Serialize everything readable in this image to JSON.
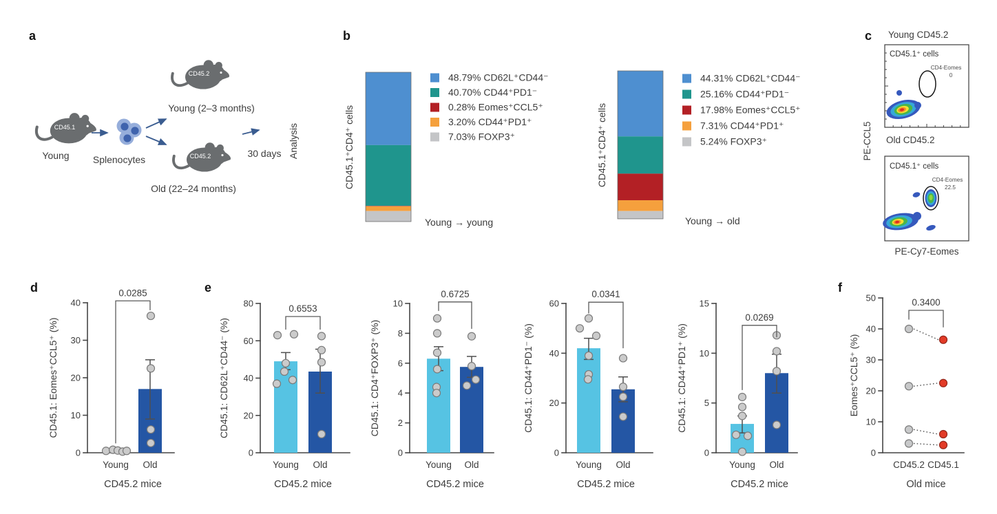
{
  "labels": {
    "a": "a",
    "b": "b",
    "c": "c",
    "d": "d",
    "e": "e",
    "f": "f"
  },
  "panel_a": {
    "donor_strain": "CD45.1",
    "donor_age": "Young",
    "cells": "Splenocytes",
    "recipient_strain": "CD45.2",
    "recipient_young": "Young (2–3 months)",
    "recipient_old": "Old (22–24 months)",
    "duration": "30 days",
    "endpoint": "Analysis"
  },
  "panel_c": {
    "title_top": "Young CD45.2",
    "title_bottom": "Old CD45.2",
    "subset_label": "CD45.1⁺ cells",
    "gate_name": "CD4-Eomes",
    "gate_value_young": "0",
    "gate_value_old": "22.5",
    "xlabel": "PE-Cy7-Eomes",
    "ylabel": "PE-CCL5"
  },
  "chart_data": [
    {
      "id": "b_young_young",
      "type": "stacked-bar",
      "axis_label": "CD45.1⁺CD4⁺ cells",
      "caption": "Young → young",
      "segments": [
        {
          "label": "48.79% CD62L⁺CD44⁻",
          "value": 48.79,
          "color": "#4e8fd0"
        },
        {
          "label": "40.70% CD44⁺PD1⁻",
          "value": 40.7,
          "color": "#1f958d"
        },
        {
          "label": "0.28% Eomes⁺CCL5⁺",
          "value": 0.28,
          "color": "#b32025"
        },
        {
          "label": "3.20% CD44⁺PD1⁺",
          "value": 3.2,
          "color": "#f5a03d"
        },
        {
          "label": "7.03% FOXP3⁺",
          "value": 7.03,
          "color": "#c4c5c7"
        }
      ]
    },
    {
      "id": "b_young_old",
      "type": "stacked-bar",
      "axis_label": "CD45.1⁺CD4⁺ cells",
      "caption": "Young → old",
      "segments": [
        {
          "label": "44.31% CD62L⁺CD44⁻",
          "value": 44.31,
          "color": "#4e8fd0"
        },
        {
          "label": "25.16% CD44⁺PD1⁻",
          "value": 25.16,
          "color": "#1f958d"
        },
        {
          "label": "17.98% Eomes⁺CCL5⁺",
          "value": 17.98,
          "color": "#b32025"
        },
        {
          "label": "7.31% CD44⁺PD1⁺",
          "value": 7.31,
          "color": "#f5a03d"
        },
        {
          "label": "5.24% FOXP3⁺",
          "value": 5.24,
          "color": "#c4c5c7"
        }
      ]
    },
    {
      "id": "d",
      "type": "bar",
      "ylabel": "CD45.1: Eomes⁺CCL5⁺ (%)",
      "xlabel": "CD45.2 mice",
      "ylim": [
        0,
        40
      ],
      "yticks": [
        0,
        10,
        20,
        30,
        40
      ],
      "p_value": "0.0285",
      "bracket": {
        "top": 40.5,
        "left_down_to": 2.5,
        "right_down_to": 38
      },
      "groups": [
        {
          "label": "Young",
          "color": "#56c3e3",
          "bar": 0.4,
          "err": null,
          "points": [
            [
              0.5,
              -14
            ],
            [
              0.8,
              -4
            ],
            [
              0.6,
              3
            ],
            [
              0.3,
              10
            ],
            [
              0.5,
              16
            ]
          ]
        },
        {
          "label": "Old",
          "color": "#2456a4",
          "bar": 17,
          "err": [
            9,
            24.8
          ],
          "points": [
            [
              36.5,
              1
            ],
            [
              22.5,
              1
            ],
            [
              6.2,
              1
            ],
            [
              2.6,
              1
            ]
          ]
        }
      ]
    },
    {
      "id": "e1",
      "type": "bar",
      "ylabel": "CD45.1: CD62L⁺CD44⁻ (%)",
      "xlabel": "CD45.2 mice",
      "ylim": [
        0,
        80
      ],
      "yticks": [
        0,
        20,
        40,
        60,
        80
      ],
      "p_value": "0.6553",
      "bracket": {
        "top": 73,
        "left_down_to": 66,
        "right_down_to": 66
      },
      "groups": [
        {
          "label": "Young",
          "color": "#56c3e3",
          "bar": 49,
          "err": [
            44.5,
            53.7
          ],
          "points": [
            [
              63,
              -12
            ],
            [
              63.5,
              12
            ],
            [
              48,
              0
            ],
            [
              43.5,
              -2
            ],
            [
              39,
              10
            ],
            [
              37,
              -13
            ]
          ]
        },
        {
          "label": "Old",
          "color": "#2456a4",
          "bar": 43.5,
          "err": [
            32,
            55.5
          ],
          "points": [
            [
              62.5,
              2
            ],
            [
              55,
              2
            ],
            [
              48.5,
              2
            ],
            [
              10,
              2
            ]
          ]
        }
      ]
    },
    {
      "id": "e2",
      "type": "bar",
      "ylabel": "CD45.1: CD4⁺FOXP3⁺ (%)",
      "xlabel": "CD45.2 mice",
      "ylim": [
        0,
        10
      ],
      "yticks": [
        0,
        2,
        4,
        6,
        8,
        10
      ],
      "p_value": "0.6725",
      "bracket": {
        "top": 10.1,
        "left_down_to": 9.5,
        "right_down_to": 8.3
      },
      "groups": [
        {
          "label": "Young",
          "color": "#56c3e3",
          "bar": 6.3,
          "err": [
            5.5,
            7.1
          ],
          "points": [
            [
              9,
              -2
            ],
            [
              8,
              -2
            ],
            [
              6.7,
              -2
            ],
            [
              5.6,
              -2
            ],
            [
              4.4,
              -3
            ],
            [
              4.0,
              -3
            ]
          ]
        },
        {
          "label": "Old",
          "color": "#2456a4",
          "bar": 5.75,
          "err": [
            5.05,
            6.45
          ],
          "points": [
            [
              7.8,
              0
            ],
            [
              5.8,
              0
            ],
            [
              4.9,
              6
            ],
            [
              4.5,
              -7
            ]
          ]
        }
      ]
    },
    {
      "id": "e3",
      "type": "bar",
      "ylabel": "CD45.1: CD44⁺PD1⁻ (%)",
      "xlabel": "CD45.2 mice",
      "ylim": [
        0,
        60
      ],
      "yticks": [
        0,
        20,
        40,
        60
      ],
      "p_value": "0.0341",
      "bracket": {
        "top": 60.5,
        "left_down_to": 56,
        "right_down_to": 42
      },
      "groups": [
        {
          "label": "Young",
          "color": "#56c3e3",
          "bar": 42,
          "err": [
            37.5,
            46
          ],
          "points": [
            [
              54,
              0
            ],
            [
              50,
              -13
            ],
            [
              47,
              11
            ],
            [
              39,
              0
            ],
            [
              31.5,
              0
            ],
            [
              29.5,
              -1
            ]
          ]
        },
        {
          "label": "Old",
          "color": "#2456a4",
          "bar": 25.5,
          "err": [
            20.5,
            30.5
          ],
          "points": [
            [
              38,
              0
            ],
            [
              26.5,
              0
            ],
            [
              22.5,
              0
            ],
            [
              14.5,
              0
            ]
          ]
        }
      ]
    },
    {
      "id": "e4",
      "type": "bar",
      "ylabel": "CD45.1: CD44⁺PD1⁺ (%)",
      "xlabel": "CD45.2 mice",
      "ylim": [
        0,
        15
      ],
      "yticks": [
        0,
        5,
        10,
        15
      ],
      "p_value": "0.0269",
      "bracket": {
        "top": 12.8,
        "left_down_to": 6.3,
        "right_down_to": 11.6
      },
      "groups": [
        {
          "label": "Young",
          "color": "#56c3e3",
          "bar": 2.9,
          "err": [
            2.0,
            3.7
          ],
          "points": [
            [
              5.6,
              0
            ],
            [
              4.6,
              0
            ],
            [
              3.7,
              0
            ],
            [
              1.8,
              -9
            ],
            [
              1.7,
              8
            ],
            [
              0.1,
              0
            ]
          ]
        },
        {
          "label": "Old",
          "color": "#2456a4",
          "bar": 8.0,
          "err": [
            6.0,
            9.9
          ],
          "points": [
            [
              11.8,
              0
            ],
            [
              10.2,
              0
            ],
            [
              8.2,
              0
            ],
            [
              2.8,
              0
            ]
          ]
        }
      ]
    },
    {
      "id": "f",
      "type": "paired-dot",
      "ylabel": "Eomes⁺CCL5⁺ (%)",
      "xlabel": "Old mice",
      "ylim": [
        0,
        50
      ],
      "yticks": [
        0,
        10,
        20,
        30,
        40,
        50
      ],
      "p_value": "0.3400",
      "bracket": {
        "top": 46,
        "left_down_to": 43,
        "right_down_to": 40.5
      },
      "categories": [
        "CD45.2",
        "CD45.1"
      ],
      "dot_colors": [
        "#c8c9ca",
        "#e23b27"
      ],
      "pairs": [
        [
          40,
          36.5
        ],
        [
          21.5,
          22.5
        ],
        [
          7.5,
          6
        ],
        [
          3,
          2.5
        ]
      ]
    }
  ]
}
